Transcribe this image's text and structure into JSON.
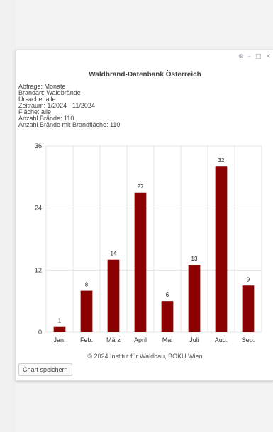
{
  "window": {
    "pin_icon": "pin-icon",
    "minimize_icon": "minimize-icon",
    "maximize_icon": "maximize-icon",
    "close_icon": "close-icon"
  },
  "meta": {
    "query": "Abfrage: Monate",
    "fire_type": "Brandart: Waldbrände",
    "cause": "Ursache: alle",
    "period": "Zeitraum: 1/2024 - 11/2024",
    "area": "Fläche: alle",
    "fire_count": "Anzahl Brände: 110",
    "fire_count_with_area": "Anzahl Brände mit Brandfläche: 110"
  },
  "credits": "© 2024 Institut für Waldbau, BOKU Wien",
  "save_button": "Chart speichern",
  "colors": {
    "bar": "#8b0000",
    "grid": "#e4e4e4"
  },
  "chart_data": {
    "type": "bar",
    "title": "Waldbrand-Datenbank Österreich",
    "categories": [
      "Jan.",
      "Feb.",
      "März",
      "April",
      "Mai",
      "Juli",
      "Aug.",
      "Sep."
    ],
    "values": [
      1,
      8,
      14,
      27,
      6,
      13,
      32,
      9
    ],
    "ylim": [
      0,
      36
    ],
    "yticks": [
      0,
      12,
      24,
      36
    ],
    "grid": true,
    "legend": "none"
  }
}
